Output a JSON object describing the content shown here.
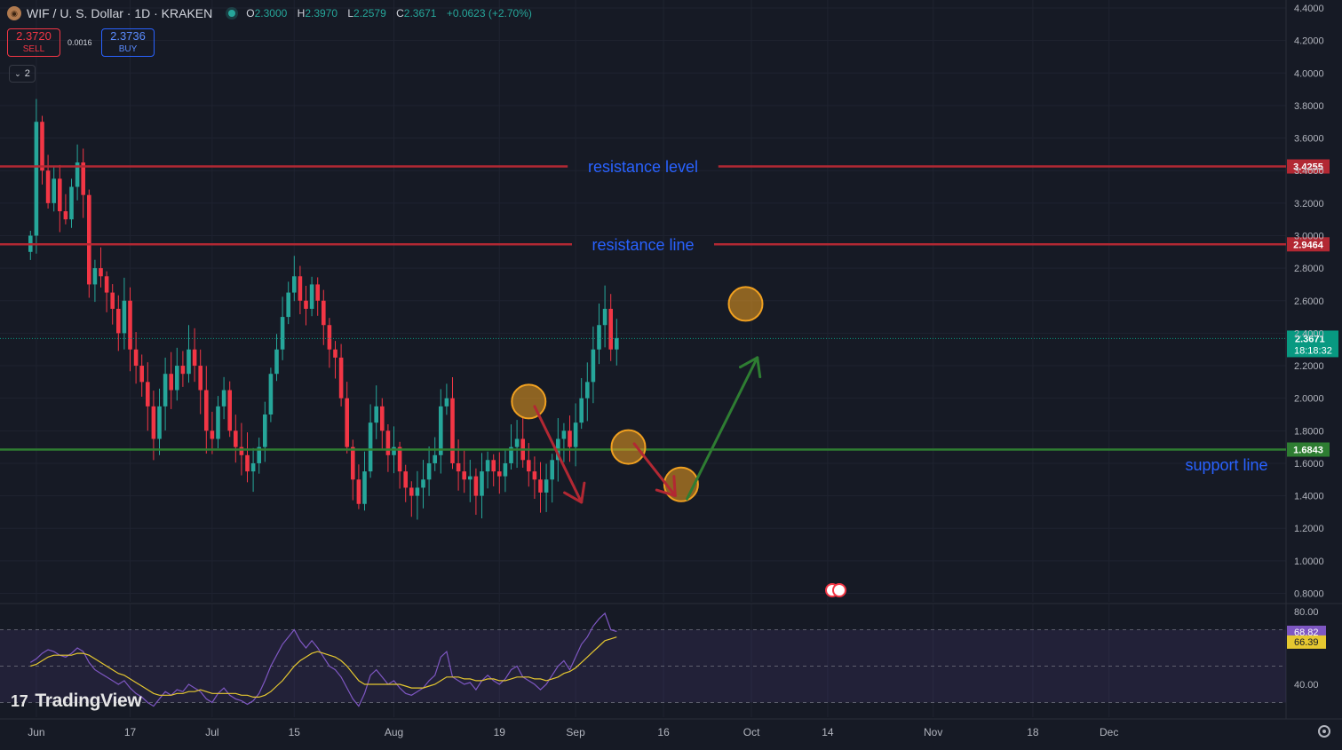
{
  "header": {
    "symbol_title": "WIF / U. S. Dollar · 1D · KRAKEN",
    "coin_icon": "dogwifhat-coin-icon",
    "ohlc": [
      {
        "key": "O",
        "value": "2.3000"
      },
      {
        "key": "H",
        "value": "2.3970"
      },
      {
        "key": "L",
        "value": "2.2579"
      },
      {
        "key": "C",
        "value": "2.3671"
      }
    ],
    "change": "+0.0623 (+2.70%)"
  },
  "trade": {
    "sell_price": "2.3720",
    "sell_label": "SELL",
    "spread": "0.0016",
    "buy_price": "2.3736",
    "buy_label": "BUY"
  },
  "indicators_toggle": {
    "count": "2",
    "icon": "chevron-down-icon"
  },
  "branding": {
    "logo_text": "TradingView",
    "logo_mark": "17"
  },
  "colors": {
    "bg": "#161a25",
    "up": "#26a69a",
    "down": "#f23645",
    "resistance": "#b22833",
    "support": "#2e7d32",
    "annotation_text": "#2962ff",
    "rsi": "#7e57c2",
    "rsi_ma": "#e6c830",
    "circle_fill": "#f0a020",
    "price_badge": "#089981"
  },
  "chart_data": {
    "type": "candlestick",
    "instrument": "WIF / U. S. Dollar",
    "interval": "1D",
    "exchange": "KRAKEN",
    "price_axis": {
      "ylim": [
        0.7,
        4.4
      ],
      "ticks": [
        "4.4000",
        "4.2000",
        "4.0000",
        "3.8000",
        "3.6000",
        "3.4000",
        "3.2000",
        "3.0000",
        "2.8000",
        "2.6000",
        "2.4000",
        "2.2000",
        "2.0000",
        "1.8000",
        "1.6000",
        "1.4000",
        "1.2000",
        "1.0000",
        "0.8000"
      ]
    },
    "time_axis": {
      "labels": [
        {
          "text": "Jun",
          "x": "2024-06-01"
        },
        {
          "text": "17",
          "x": "2024-06-17"
        },
        {
          "text": "Jul",
          "x": "2024-07-01"
        },
        {
          "text": "15",
          "x": "2024-07-15"
        },
        {
          "text": "Aug",
          "x": "2024-08-01"
        },
        {
          "text": "19",
          "x": "2024-08-19"
        },
        {
          "text": "Sep",
          "x": "2024-09-01"
        },
        {
          "text": "16",
          "x": "2024-09-16"
        },
        {
          "text": "Oct",
          "x": "2024-10-01"
        },
        {
          "text": "14",
          "x": "2024-10-14"
        },
        {
          "text": "Nov",
          "x": "2024-11-01"
        },
        {
          "text": "18",
          "x": "2024-11-18"
        },
        {
          "text": "Dec",
          "x": "2024-12-01"
        }
      ]
    },
    "candles_close": [
      3.0,
      3.7,
      3.4,
      3.2,
      3.35,
      3.15,
      3.1,
      3.3,
      3.45,
      3.25,
      2.7,
      2.8,
      2.75,
      2.65,
      2.55,
      2.4,
      2.6,
      2.3,
      2.2,
      2.1,
      1.95,
      1.75,
      1.95,
      2.15,
      2.05,
      2.2,
      2.15,
      2.3,
      2.2,
      2.05,
      1.8,
      1.75,
      1.95,
      2.05,
      1.8,
      1.7,
      1.65,
      1.55,
      1.6,
      1.7,
      1.9,
      2.15,
      2.3,
      2.5,
      2.65,
      2.75,
      2.6,
      2.55,
      2.7,
      2.6,
      2.45,
      2.3,
      2.25,
      2.0,
      1.7,
      1.5,
      1.35,
      1.55,
      1.85,
      1.95,
      1.8,
      1.65,
      1.7,
      1.55,
      1.45,
      1.4,
      1.45,
      1.5,
      1.6,
      1.65,
      1.95,
      2.0,
      1.6,
      1.55,
      1.5,
      1.52,
      1.4,
      1.55,
      1.62,
      1.55,
      1.52,
      1.6,
      1.7,
      1.75,
      1.62,
      1.55,
      1.5,
      1.42,
      1.5,
      1.62,
      1.75,
      1.8,
      1.7,
      1.85,
      2.0,
      2.1,
      2.3,
      2.45,
      2.55,
      2.3,
      2.37
    ],
    "candles_start_date": "2024-05-31",
    "last_price": "2.3671",
    "countdown": "18:18:32",
    "horizontal_lines": [
      {
        "name": "resistance level",
        "price": 3.4255,
        "label": "3.4255",
        "color": "#b22833"
      },
      {
        "name": "resistance line",
        "price": 2.9464,
        "label": "2.9464",
        "color": "#b22833"
      },
      {
        "name": "support line",
        "price": 1.6843,
        "label": "1.6843",
        "color": "#2e7d32"
      }
    ],
    "annotations": [
      {
        "text": "resistance level"
      },
      {
        "text": "resistance line"
      },
      {
        "text": "support line"
      }
    ],
    "highlight_circles": [
      {
        "date": "2024-08-24",
        "price": 1.98
      },
      {
        "date": "2024-09-10",
        "price": 1.7
      },
      {
        "date": "2024-09-19",
        "price": 1.47
      },
      {
        "date": "2024-09-30",
        "price": 2.58
      }
    ],
    "arrows": [
      {
        "color": "#b22833",
        "from": {
          "date": "2024-08-25",
          "price": 1.95
        },
        "to": {
          "date": "2024-09-02",
          "price": 1.36
        }
      },
      {
        "color": "#b22833",
        "from": {
          "date": "2024-09-11",
          "price": 1.72
        },
        "to": {
          "date": "2024-09-18",
          "price": 1.4
        }
      },
      {
        "color": "#2e7d32",
        "from": {
          "date": "2024-09-20",
          "price": 1.38
        },
        "to": {
          "date": "2024-10-02",
          "price": 2.25
        }
      }
    ],
    "rsi": {
      "ylim": [
        20,
        85
      ],
      "ticks": [
        "80.00",
        "40.00"
      ],
      "band": [
        30,
        70
      ],
      "value": "68.82",
      "ma_value": "66.39",
      "values": [
        52,
        54,
        57,
        59,
        58,
        56,
        55,
        57,
        60,
        58,
        52,
        48,
        46,
        44,
        42,
        40,
        42,
        38,
        35,
        33,
        30,
        28,
        32,
        36,
        34,
        37,
        36,
        40,
        38,
        36,
        32,
        30,
        35,
        38,
        34,
        32,
        31,
        29,
        31,
        35,
        42,
        50,
        56,
        62,
        66,
        70,
        64,
        60,
        64,
        60,
        55,
        50,
        48,
        44,
        38,
        32,
        28,
        35,
        45,
        48,
        44,
        40,
        42,
        38,
        35,
        34,
        36,
        38,
        42,
        45,
        55,
        58,
        44,
        42,
        40,
        41,
        37,
        42,
        45,
        42,
        40,
        43,
        48,
        50,
        44,
        42,
        40,
        37,
        40,
        45,
        50,
        53,
        48,
        55,
        62,
        66,
        72,
        76,
        79,
        70,
        69
      ],
      "ma_values": [
        50,
        51,
        53,
        55,
        56,
        56,
        56,
        56,
        57,
        57,
        56,
        54,
        52,
        50,
        48,
        46,
        45,
        43,
        41,
        39,
        37,
        35,
        34,
        34,
        34,
        35,
        35,
        36,
        36,
        37,
        36,
        35,
        35,
        35,
        35,
        35,
        34,
        34,
        33,
        33,
        34,
        36,
        39,
        42,
        46,
        50,
        53,
        55,
        57,
        58,
        57,
        56,
        55,
        53,
        50,
        46,
        42,
        40,
        40,
        40,
        40,
        40,
        40,
        40,
        39,
        38,
        38,
        38,
        39,
        40,
        42,
        44,
        44,
        44,
        43,
        43,
        42,
        42,
        43,
        43,
        42,
        42,
        43,
        44,
        44,
        44,
        43,
        43,
        42,
        43,
        44,
        46,
        47,
        49,
        52,
        55,
        58,
        61,
        64,
        65,
        66
      ]
    }
  }
}
